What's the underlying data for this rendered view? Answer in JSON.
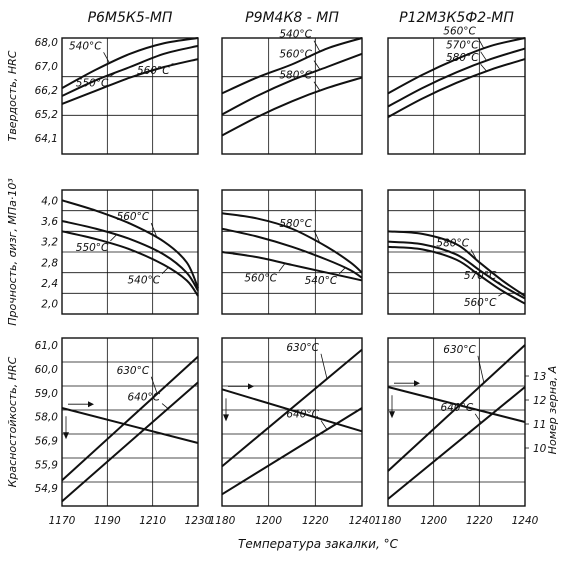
{
  "column_titles": [
    "Р6М5К5-МП",
    "Р9М4К8 - МП",
    "Р12М3К5Ф2-МП"
  ],
  "row_ylabels": [
    "Твердость, HRC",
    "Прочность, σизг, МПа·10³",
    "Красностойкость, HRC"
  ],
  "right_ylabel": "Номер зерна, А",
  "xlabel": "Температура закалки, °С",
  "chart_data": [
    {
      "type": "line",
      "panel": "r0c0",
      "title": "Р6М5К5-МП",
      "ylabel": "Твердость, HRC",
      "xlim": [
        1170,
        1230
      ],
      "ylim": [
        63.6,
        68.0
      ],
      "grid": true,
      "yticks": [
        "68,0",
        "67,0",
        "66,2",
        "65,2",
        "64,1"
      ],
      "xticks": [],
      "series": [
        {
          "name": "540°С",
          "x": [
            1170,
            1185,
            1200,
            1215,
            1230
          ],
          "y": [
            66.1,
            66.8,
            67.4,
            67.8,
            68.0
          ]
        },
        {
          "name": "560°С",
          "x": [
            1170,
            1185,
            1200,
            1215,
            1230
          ],
          "y": [
            65.5,
            66.0,
            66.5,
            66.9,
            67.2
          ]
        },
        {
          "name": "550°С",
          "x": [
            1170,
            1185,
            1200,
            1215,
            1230
          ],
          "y": [
            65.8,
            66.4,
            66.9,
            67.4,
            67.7
          ]
        }
      ]
    },
    {
      "type": "line",
      "panel": "r0c1",
      "title": "Р9М4К8 - МП",
      "xlim": [
        1180,
        1240
      ],
      "ylim": [
        63.6,
        68.0
      ],
      "grid": true,
      "series": [
        {
          "name": "540°С",
          "x": [
            1180,
            1195,
            1210,
            1225,
            1240
          ],
          "y": [
            65.9,
            66.5,
            67.0,
            67.6,
            68.0
          ]
        },
        {
          "name": "560°С",
          "x": [
            1180,
            1195,
            1210,
            1225,
            1240
          ],
          "y": [
            65.1,
            65.8,
            66.4,
            66.9,
            67.4
          ]
        },
        {
          "name": "580°С",
          "x": [
            1180,
            1195,
            1210,
            1225,
            1240
          ],
          "y": [
            64.3,
            65.0,
            65.6,
            66.1,
            66.5
          ]
        }
      ]
    },
    {
      "type": "line",
      "panel": "r0c2",
      "title": "Р12М3К5Ф2-МП",
      "xlim": [
        1180,
        1240
      ],
      "ylim": [
        63.6,
        68.0
      ],
      "grid": true,
      "series": [
        {
          "name": "560°С",
          "x": [
            1180,
            1195,
            1210,
            1225,
            1240
          ],
          "y": [
            65.9,
            66.6,
            67.2,
            67.7,
            68.0
          ]
        },
        {
          "name": "570°С",
          "x": [
            1180,
            1195,
            1210,
            1225,
            1240
          ],
          "y": [
            65.4,
            66.1,
            66.7,
            67.2,
            67.6
          ]
        },
        {
          "name": "580°С",
          "x": [
            1180,
            1195,
            1210,
            1225,
            1240
          ],
          "y": [
            65.0,
            65.7,
            66.3,
            66.8,
            67.2
          ]
        }
      ]
    },
    {
      "type": "line",
      "panel": "r1c0",
      "ylabel": "Прочность, σизг, МПа·10³",
      "xlim": [
        1170,
        1230
      ],
      "ylim": [
        2.0,
        4.4
      ],
      "grid": true,
      "yticks": [
        "4,0",
        "3,6",
        "3,2",
        "2,8",
        "2,4",
        "2,0"
      ],
      "series": [
        {
          "name": "560°С",
          "x": [
            1170,
            1185,
            1200,
            1215,
            1225,
            1230
          ],
          "y": [
            4.2,
            4.0,
            3.75,
            3.4,
            3.0,
            2.5
          ]
        },
        {
          "name": "550°С",
          "x": [
            1170,
            1185,
            1200,
            1215,
            1225,
            1230
          ],
          "y": [
            3.8,
            3.65,
            3.45,
            3.15,
            2.8,
            2.45
          ]
        },
        {
          "name": "540°С",
          "x": [
            1170,
            1185,
            1200,
            1215,
            1225,
            1230
          ],
          "y": [
            3.6,
            3.45,
            3.25,
            2.95,
            2.65,
            2.35
          ]
        }
      ]
    },
    {
      "type": "line",
      "panel": "r1c1",
      "xlim": [
        1180,
        1240
      ],
      "ylim": [
        2.0,
        4.4
      ],
      "grid": true,
      "series": [
        {
          "name": "580°С",
          "x": [
            1180,
            1195,
            1210,
            1225,
            1235,
            1240
          ],
          "y": [
            3.95,
            3.85,
            3.65,
            3.3,
            3.0,
            2.8
          ]
        },
        {
          "name": "540°С",
          "x": [
            1180,
            1195,
            1210,
            1225,
            1235,
            1240
          ],
          "y": [
            3.65,
            3.5,
            3.3,
            3.05,
            2.85,
            2.7
          ]
        },
        {
          "name": "560°С",
          "x": [
            1180,
            1195,
            1210,
            1225,
            1235,
            1240
          ],
          "y": [
            3.2,
            3.1,
            2.95,
            2.8,
            2.7,
            2.65
          ]
        }
      ]
    },
    {
      "type": "line",
      "panel": "r1c2",
      "xlim": [
        1180,
        1240
      ],
      "ylim": [
        2.0,
        4.4
      ],
      "grid": true,
      "series": [
        {
          "name": "580°С",
          "x": [
            1180,
            1195,
            1210,
            1220,
            1230,
            1240
          ],
          "y": [
            3.6,
            3.55,
            3.35,
            3.0,
            2.65,
            2.35
          ]
        },
        {
          "name": "570°С",
          "x": [
            1180,
            1195,
            1210,
            1220,
            1230,
            1240
          ],
          "y": [
            3.4,
            3.35,
            3.15,
            2.85,
            2.55,
            2.3
          ]
        },
        {
          "name": "560°С",
          "x": [
            1180,
            1195,
            1210,
            1220,
            1230,
            1240
          ],
          "y": [
            3.3,
            3.25,
            3.05,
            2.75,
            2.45,
            2.2
          ]
        }
      ]
    },
    {
      "type": "line",
      "panel": "r2c0",
      "ylabel": "Красностойкость, HRC",
      "xlim": [
        1170,
        1230
      ],
      "ylim": [
        54.3,
        61.5
      ],
      "grid": true,
      "yticks": [
        "61,0",
        "60,0",
        "59,0",
        "58,0",
        "56,9",
        "55,9",
        "54,9"
      ],
      "xticks": [
        "1170",
        "1190",
        "1210",
        "1230"
      ],
      "series": [
        {
          "name": "630°С",
          "x": [
            1170,
            1230
          ],
          "y": [
            55.4,
            60.7
          ]
        },
        {
          "name": "640°С",
          "x": [
            1170,
            1230
          ],
          "y": [
            54.5,
            59.6
          ]
        },
        {
          "name": "grain",
          "axis": "right",
          "x": [
            1170,
            1230
          ],
          "y": [
            58.5,
            57.0
          ]
        }
      ]
    },
    {
      "type": "line",
      "panel": "r2c1",
      "xlim": [
        1180,
        1240
      ],
      "ylim": [
        54.3,
        61.5
      ],
      "grid": true,
      "xticks": [
        "1180",
        "1200",
        "1220",
        "1240"
      ],
      "series": [
        {
          "name": "630°С",
          "x": [
            1180,
            1240
          ],
          "y": [
            56.0,
            61.0
          ]
        },
        {
          "name": "640°С",
          "x": [
            1180,
            1240
          ],
          "y": [
            54.8,
            58.5
          ]
        },
        {
          "name": "grain",
          "axis": "right",
          "x": [
            1180,
            1240
          ],
          "y": [
            59.3,
            57.5
          ]
        }
      ]
    },
    {
      "type": "line",
      "panel": "r2c2",
      "xlim": [
        1180,
        1240
      ],
      "ylim": [
        54.3,
        61.5
      ],
      "grid": true,
      "xticks": [
        "1180",
        "1200",
        "1220",
        "1240"
      ],
      "yticks_right": [
        "13",
        "12",
        "11",
        "10"
      ],
      "series": [
        {
          "name": "630°С",
          "x": [
            1180,
            1240
          ],
          "y": [
            55.8,
            61.2
          ]
        },
        {
          "name": "640°С",
          "x": [
            1180,
            1240
          ],
          "y": [
            54.6,
            59.4
          ]
        },
        {
          "name": "grain",
          "axis": "right",
          "x": [
            1180,
            1240
          ],
          "y": [
            59.4,
            57.9
          ]
        }
      ]
    }
  ]
}
